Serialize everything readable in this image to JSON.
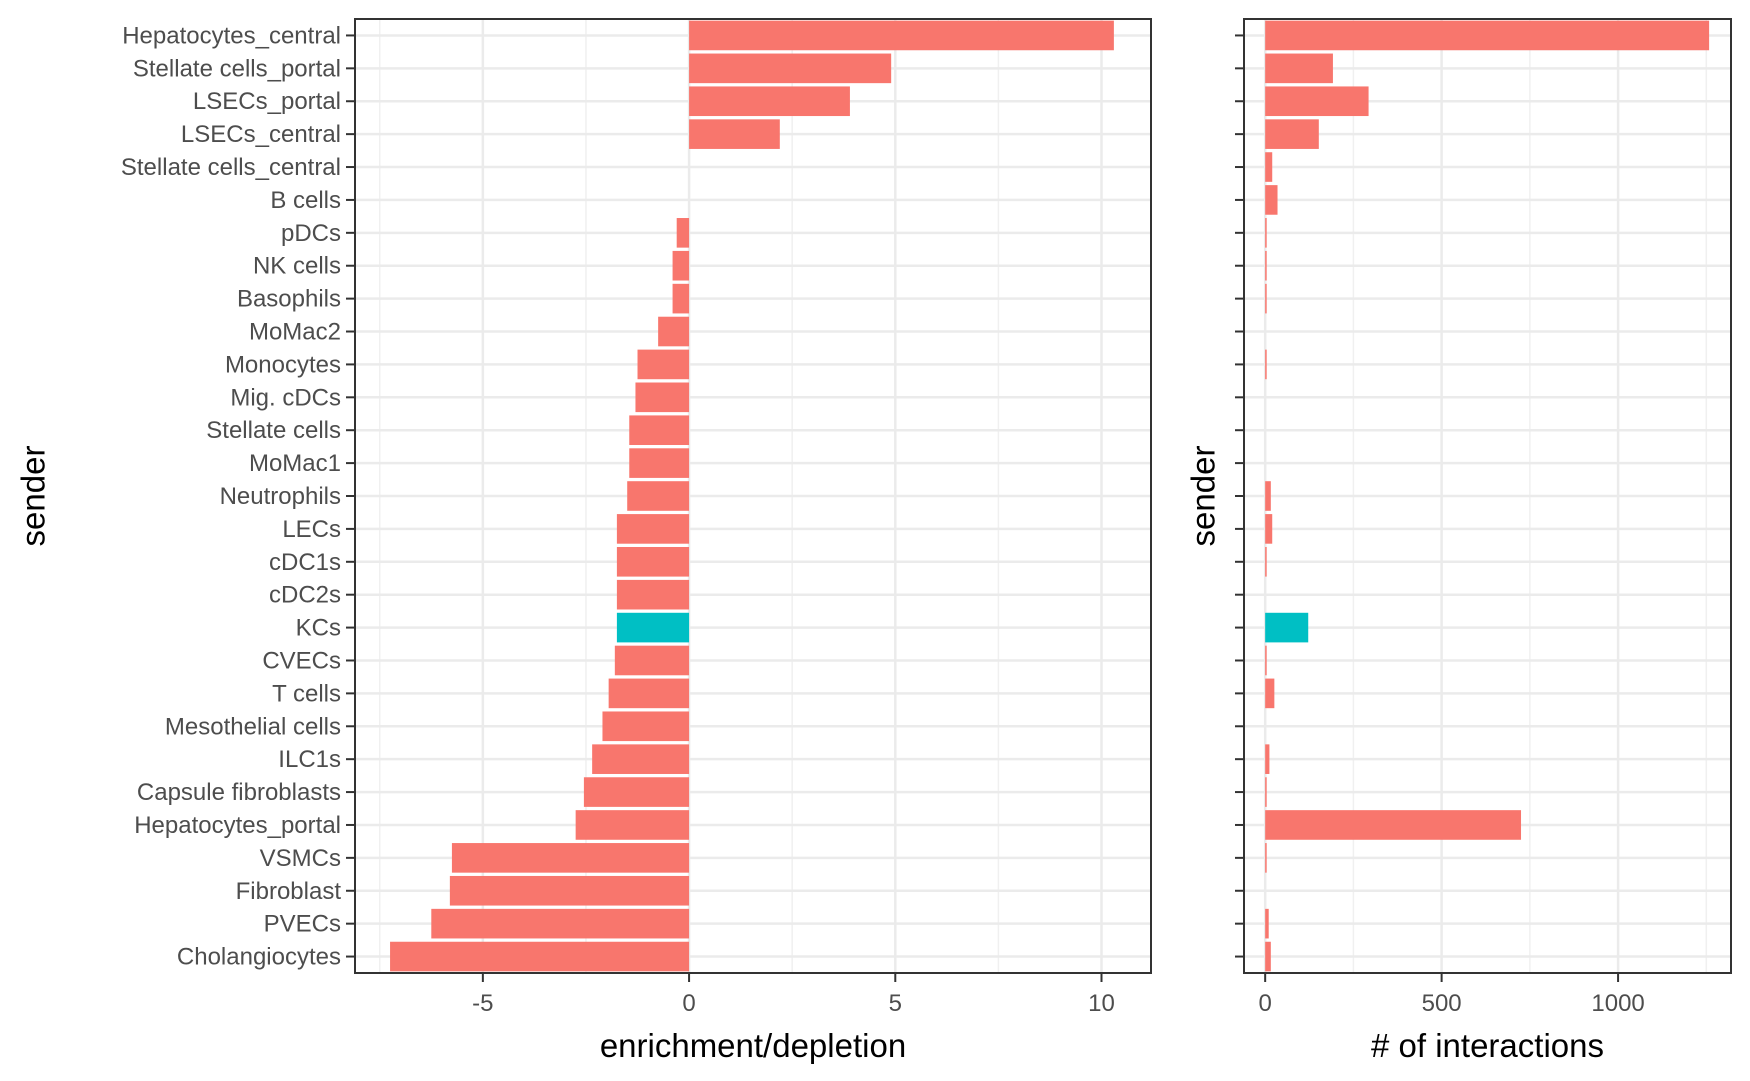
{
  "chart_data": [
    {
      "type": "bar",
      "orientation": "horizontal",
      "panel": "left",
      "xlabel": "enrichment/depletion",
      "ylabel": "sender",
      "xlim": [
        -8.1,
        11.2
      ],
      "xticks": [
        -5,
        0,
        5,
        10
      ],
      "grid": true,
      "categories": [
        "Hepatocytes_central",
        "Stellate cells_portal",
        "LSECs_portal",
        "LSECs_central",
        "Stellate cells_central",
        "B cells",
        "pDCs",
        "NK cells",
        "Basophils",
        "MoMac2",
        "Monocytes",
        "Mig. cDCs",
        "Stellate cells",
        "MoMac1",
        "Neutrophils",
        "LECs",
        "cDC1s",
        "cDC2s",
        "KCs",
        "CVECs",
        "T cells",
        "Mesothelial cells",
        "ILC1s",
        "Capsule fibroblasts",
        "Hepatocytes_portal",
        "VSMCs",
        "Fibroblast",
        "PVECs",
        "Cholangiocytes"
      ],
      "values": [
        10.3,
        4.9,
        3.9,
        2.2,
        0.0,
        0.0,
        -0.3,
        -0.4,
        -0.4,
        -0.75,
        -1.25,
        -1.3,
        -1.45,
        -1.45,
        -1.5,
        -1.75,
        -1.75,
        -1.75,
        -1.75,
        -1.8,
        -1.95,
        -2.1,
        -2.35,
        -2.55,
        -2.75,
        -5.75,
        -5.8,
        -6.25,
        -7.25
      ],
      "highlight": "KCs",
      "colors": {
        "default": "#F8766D",
        "highlight": "#00BFC4"
      }
    },
    {
      "type": "bar",
      "orientation": "horizontal",
      "panel": "right",
      "xlabel": "# of interactions",
      "ylabel": "sender",
      "xlim": [
        -60,
        1320
      ],
      "xticks": [
        0,
        500,
        1000
      ],
      "grid": true,
      "categories": [
        "Hepatocytes_central",
        "Stellate cells_portal",
        "LSECs_portal",
        "LSECs_central",
        "Stellate cells_central",
        "B cells",
        "pDCs",
        "NK cells",
        "Basophils",
        "MoMac2",
        "Monocytes",
        "Mig. cDCs",
        "Stellate cells",
        "MoMac1",
        "Neutrophils",
        "LECs",
        "cDC1s",
        "cDC2s",
        "KCs",
        "CVECs",
        "T cells",
        "Mesothelial cells",
        "ILC1s",
        "Capsule fibroblasts",
        "Hepatocytes_portal",
        "VSMCs",
        "Fibroblast",
        "PVECs",
        "Cholangiocytes"
      ],
      "values": [
        1258,
        192,
        293,
        152,
        20,
        35,
        4,
        4,
        4,
        0,
        4,
        0,
        0,
        0,
        16,
        20,
        4,
        0,
        122,
        4,
        26,
        0,
        12,
        4,
        725,
        4,
        0,
        10,
        16
      ],
      "highlight": "KCs",
      "colors": {
        "default": "#F8766D",
        "highlight": "#00BFC4"
      }
    }
  ]
}
